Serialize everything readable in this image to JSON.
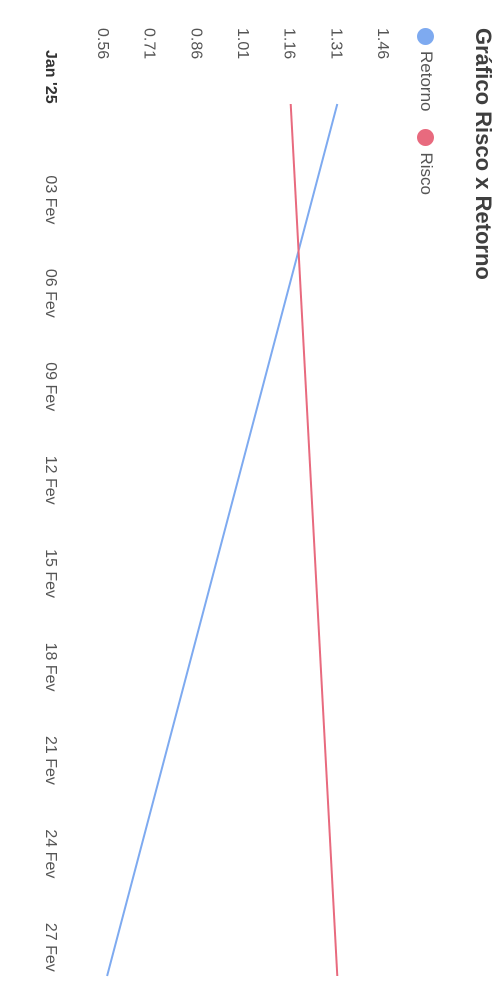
{
  "chart_data": {
    "type": "line",
    "title": "Gráfico Risco x Retorno",
    "xlabel": "",
    "ylabel": "",
    "x_ticks": [
      "Jan '25",
      "03 Fev",
      "06 Fev",
      "09 Fev",
      "12 Fev",
      "15 Fev",
      "18 Fev",
      "21 Fev",
      "24 Fev",
      "27 Fev"
    ],
    "y_ticks": [
      "1.46",
      "1.31",
      "1.16",
      "1.01",
      "0.86",
      "0.71",
      "0.56"
    ],
    "ylim": [
      0.56,
      1.46
    ],
    "x": [
      "2025-01-31",
      "2025-02-28"
    ],
    "series": [
      {
        "name": "Retorno",
        "color": "#7eaaf0",
        "values": [
          1.31,
          0.57
        ]
      },
      {
        "name": "Risco",
        "color": "#e86a7e",
        "values": [
          1.16,
          1.31
        ]
      }
    ],
    "grid": false,
    "legend": "top-left"
  }
}
